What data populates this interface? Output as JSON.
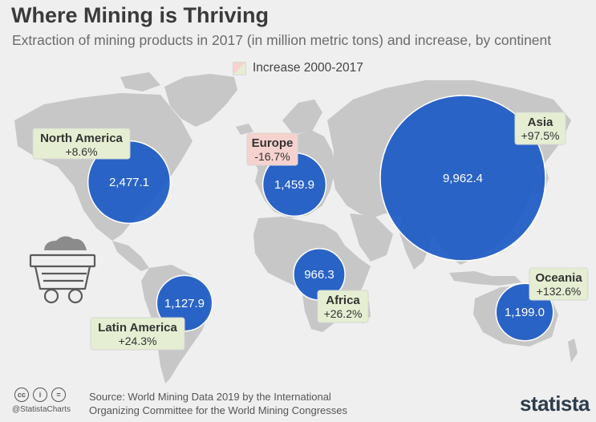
{
  "header": {
    "title": "Where Mining is Thriving",
    "subtitle": "Extraction of mining products in 2017 (in million metric tons) and increase, by continent"
  },
  "legend": {
    "label": "Increase 2000-2017",
    "swatch_colors": [
      "#f6d2cf",
      "#e5eed2"
    ]
  },
  "colors": {
    "bubble": "#1e5bc6",
    "bubble_border": "#ffffff",
    "map_land": "#c7c7c7",
    "background": "#efefef",
    "increase_positive": "#e5eed2",
    "decrease_negative": "#f6d2cf"
  },
  "chart_data": {
    "type": "bubble-map",
    "unit": "million metric tons",
    "series": [
      {
        "continent": "North America",
        "value": 2477.1,
        "value_label": "2,477.1",
        "change_label": "+8.6%",
        "change_pct": 8.6
      },
      {
        "continent": "Europe",
        "value": 1459.9,
        "value_label": "1,459.9",
        "change_label": "-16.7%",
        "change_pct": -16.7
      },
      {
        "continent": "Asia",
        "value": 9962.4,
        "value_label": "9,962.4",
        "change_label": "+97.5%",
        "change_pct": 97.5
      },
      {
        "continent": "Africa",
        "value": 966.3,
        "value_label": "966.3",
        "change_label": "+26.2%",
        "change_pct": 26.2
      },
      {
        "continent": "Latin America",
        "value": 1127.9,
        "value_label": "1,127.9",
        "change_label": "+24.3%",
        "change_pct": 24.3
      },
      {
        "continent": "Oceania",
        "value": 1199.0,
        "value_label": "1,199.0",
        "change_label": "+132.6%",
        "change_pct": 132.6
      }
    ]
  },
  "footer": {
    "cc_icons": [
      "cc",
      "i",
      "="
    ],
    "handle": "@StatistaCharts",
    "source_line1": "Source: World Mining Data 2019 by the International",
    "source_line2": "Organizing Committee for the World Mining Congresses",
    "brand": "statista"
  }
}
